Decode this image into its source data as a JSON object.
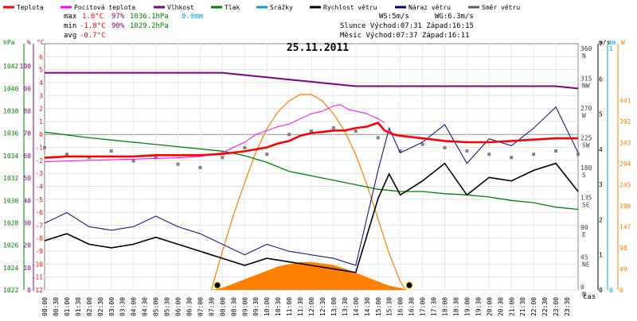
{
  "legend": [
    {
      "label": "Teplota",
      "color": "#ff0000"
    },
    {
      "label": "Pocitová teplota",
      "color": "#ff00ff"
    },
    {
      "label": "Vlhkost",
      "color": "#800080"
    },
    {
      "label": "Tlak",
      "color": "#008000"
    },
    {
      "label": "Srážky",
      "color": "#00a0e0"
    },
    {
      "label": "Rychlost větru",
      "color": "#000000"
    },
    {
      "label": "Náraz větru",
      "color": "#000080"
    },
    {
      "label": "Směr větru",
      "color": "#606060"
    }
  ],
  "stats": {
    "max": {
      "label": "max",
      "temp": "1.0°C",
      "hum": "97%",
      "press": "1036.1hPa",
      "rain": "0.0mm"
    },
    "min": {
      "label": "min",
      "temp": "-1.8°C",
      "hum": "90%",
      "press": "1029.2hPa"
    },
    "avg": {
      "label": "avg",
      "temp": "-0.7°C"
    }
  },
  "wind_info": {
    "ws": "WS:5m/s",
    "wg": "WG:6.3m/s",
    "sun": "Slunce Východ:07:31  Západ:16:15",
    "moon": "Měsíc  Východ:07:37  Západ:16:11"
  },
  "chart_data": {
    "type": "line",
    "title": "25.11.2011",
    "xlabel": "čas",
    "x_ticks": [
      "00:00",
      "00:30",
      "01:00",
      "01:30",
      "02:00",
      "02:30",
      "03:00",
      "03:30",
      "04:00",
      "04:30",
      "05:00",
      "05:30",
      "06:00",
      "06:30",
      "07:00",
      "07:30",
      "08:00",
      "08:30",
      "09:00",
      "09:30",
      "10:00",
      "10:30",
      "11:00",
      "11:30",
      "12:00",
      "12:30",
      "13:00",
      "13:30",
      "14:00",
      "14:30",
      "15:00",
      "15:30",
      "16:00",
      "16:30",
      "17:00",
      "17:30",
      "18:00",
      "18:30",
      "19:00",
      "19:30",
      "20:00",
      "20:30",
      "21:00",
      "21:30",
      "22:00",
      "22:30",
      "23:00",
      "23:30"
    ],
    "x_range_hours": [
      0,
      24
    ],
    "axes": {
      "pressure": {
        "unit": "hPa",
        "range": [
          1022,
          1044
        ],
        "ticks": [
          "1022",
          "1024",
          "1026",
          "1028",
          "1030",
          "1032",
          "1034",
          "1036",
          "1038",
          "1040",
          "1042"
        ],
        "color": "#008000"
      },
      "humidity": {
        "unit": "%",
        "range": [
          0,
          110
        ],
        "ticks": [
          "0",
          "10",
          "20",
          "30",
          "40",
          "50",
          "60",
          "70",
          "80",
          "90",
          "100"
        ],
        "color": "#800080"
      },
      "temperature": {
        "unit": "°C",
        "range": [
          -12,
          7
        ],
        "ticks": [
          "-12",
          "-11",
          "-10",
          "-9",
          "-8",
          "-7",
          "-6",
          "-5",
          "-4",
          "-3",
          "-2",
          "-1",
          "0",
          "1",
          "2",
          "3",
          "4",
          "5",
          "6"
        ],
        "color": "#ff0000"
      },
      "direction": {
        "unit": "°",
        "ticks": [
          {
            "deg": "0",
            "dir": "N"
          },
          {
            "deg": "45",
            "dir": "NE"
          },
          {
            "deg": "90",
            "dir": "E"
          },
          {
            "deg": "135",
            "dir": "SE"
          },
          {
            "deg": "180",
            "dir": "S"
          },
          {
            "deg": "225",
            "dir": "SW"
          },
          {
            "deg": "270",
            "dir": "W"
          },
          {
            "deg": "315",
            "dir": "NW"
          },
          {
            "deg": "360",
            "dir": "N"
          }
        ],
        "color": "#404040"
      },
      "wind": {
        "unit": "m/s",
        "range": [
          0,
          7
        ],
        "ticks": [
          "0",
          "1",
          "2",
          "3",
          "4",
          "5",
          "6",
          "7"
        ],
        "color": "#000000"
      },
      "rain": {
        "unit": "mm",
        "ticks": [
          "0",
          "1"
        ],
        "color": "#00a0e0"
      },
      "solar": {
        "unit": "W",
        "range": [
          0,
          490
        ],
        "ticks": [
          "0",
          "49",
          "98",
          "147",
          "196",
          "245",
          "294",
          "343",
          "392",
          "441"
        ],
        "color": "#ff8000"
      }
    },
    "series": [
      {
        "name": "Teplota",
        "color": "#ff0000",
        "x": [
          0,
          1,
          2,
          3,
          4,
          5,
          6,
          7,
          8,
          9,
          10,
          10.5,
          11,
          11.5,
          12,
          12.5,
          13,
          13.5,
          14,
          14.5,
          15,
          15.3,
          15.7,
          16,
          17,
          18,
          19,
          20,
          21,
          22,
          23,
          24
        ],
        "y": [
          -1.8,
          -1.7,
          -1.7,
          -1.7,
          -1.7,
          -1.6,
          -1.6,
          -1.6,
          -1.5,
          -1.3,
          -1.0,
          -0.7,
          -0.5,
          -0.1,
          0.1,
          0.2,
          0.3,
          0.3,
          0.5,
          0.6,
          0.9,
          0.3,
          0.0,
          -0.1,
          -0.3,
          -0.5,
          -0.6,
          -0.6,
          -0.5,
          -0.4,
          -0.3,
          -0.3
        ]
      },
      {
        "name": "Pocitová teplota",
        "color": "#ff00ff",
        "x": [
          0,
          2,
          4,
          6,
          7,
          8,
          8.5,
          9,
          9.5,
          10,
          10.5,
          11,
          11.5,
          12,
          12.5,
          13,
          13.3,
          13.7,
          14,
          14.5,
          15,
          15.3
        ],
        "y": [
          -2.1,
          -2.0,
          -1.9,
          -1.8,
          -1.7,
          -1.4,
          -1.0,
          -0.6,
          0.0,
          0.3,
          0.6,
          0.8,
          1.2,
          1.6,
          1.8,
          2.2,
          2.3,
          1.9,
          1.8,
          1.6,
          1.2,
          0.9
        ]
      },
      {
        "name": "Vlhkost",
        "color": "#800080",
        "x": [
          0,
          1,
          2,
          3,
          4,
          5,
          6,
          7,
          8,
          9,
          10,
          11,
          12,
          13,
          14,
          15,
          16,
          17,
          18,
          19,
          20,
          21,
          22,
          23,
          24
        ],
        "y": [
          97,
          97,
          97,
          97,
          97,
          97,
          97,
          97,
          97,
          96,
          95,
          94,
          93,
          92,
          91,
          91,
          91,
          91,
          91,
          91,
          91,
          91,
          91,
          91,
          90
        ]
      },
      {
        "name": "Tlak",
        "color": "#008000",
        "x": [
          0,
          2,
          4,
          6,
          8,
          9,
          10,
          11,
          12,
          13,
          14,
          15,
          16,
          17,
          18,
          19,
          20,
          21,
          22,
          23,
          24
        ],
        "y": [
          1036.1,
          1035.6,
          1035.2,
          1034.8,
          1034.4,
          1034.0,
          1033.4,
          1032.6,
          1032.2,
          1031.8,
          1031.4,
          1031.0,
          1030.8,
          1030.8,
          1030.6,
          1030.5,
          1030.3,
          1030.0,
          1029.8,
          1029.4,
          1029.2
        ]
      },
      {
        "name": "Rychlost větru",
        "color": "#000000",
        "x": [
          0,
          1,
          2,
          3,
          4,
          5,
          6,
          7,
          8,
          9,
          10,
          11,
          12,
          13,
          14,
          15,
          15.5,
          16,
          17,
          18,
          19,
          20,
          21,
          22,
          23,
          24
        ],
        "y": [
          1.4,
          1.6,
          1.3,
          1.2,
          1.3,
          1.5,
          1.3,
          1.1,
          0.9,
          0.7,
          0.9,
          0.8,
          0.7,
          0.6,
          0.5,
          2.6,
          3.3,
          2.7,
          3.1,
          3.6,
          2.7,
          3.2,
          3.1,
          3.4,
          3.6,
          2.8
        ]
      },
      {
        "name": "Náraz větru",
        "color": "#000080",
        "x": [
          0,
          1,
          2,
          3,
          4,
          5,
          6,
          7,
          8,
          9,
          10,
          11,
          12,
          13,
          14,
          15,
          15.5,
          16,
          17,
          18,
          19,
          20,
          21,
          22,
          23,
          24
        ],
        "y": [
          1.9,
          2.2,
          1.8,
          1.7,
          1.8,
          2.1,
          1.8,
          1.6,
          1.3,
          1.0,
          1.3,
          1.1,
          1.0,
          0.9,
          0.7,
          3.4,
          4.6,
          3.9,
          4.2,
          4.7,
          3.6,
          4.3,
          4.1,
          4.6,
          5.2,
          3.9
        ]
      },
      {
        "name": "Solar",
        "color": "#ff8000",
        "x": [
          7.5,
          8,
          8.5,
          9,
          9.5,
          10,
          10.5,
          11,
          11.5,
          12,
          12.5,
          13,
          13.5,
          14,
          14.5,
          15,
          15.5,
          16,
          16.3
        ],
        "y": [
          0,
          5,
          15,
          25,
          35,
          45,
          55,
          60,
          65,
          65,
          62,
          58,
          50,
          40,
          30,
          20,
          10,
          5,
          0
        ]
      },
      {
        "name": "Max solar",
        "color": "#ff8000",
        "x": [
          7.5,
          8,
          8.5,
          9,
          9.5,
          10,
          10.5,
          11,
          11.5,
          12,
          12.5,
          13,
          13.5,
          14,
          14.5,
          15,
          15.5,
          16,
          16.25
        ],
        "y": [
          0,
          90,
          175,
          250,
          320,
          375,
          415,
          440,
          455,
          455,
          440,
          410,
          370,
          315,
          245,
          165,
          85,
          20,
          0
        ]
      },
      {
        "name": "Směr větru",
        "color": "#606060",
        "x": [
          0,
          1,
          2,
          3,
          4,
          5,
          6,
          7,
          8,
          9,
          10,
          11,
          12,
          13,
          14,
          15,
          16,
          17,
          18,
          19,
          20,
          21,
          22,
          23,
          24
        ],
        "y": [
          215,
          205,
          200,
          210,
          195,
          200,
          190,
          185,
          200,
          215,
          205,
          235,
          240,
          245,
          240,
          230,
          210,
          220,
          215,
          210,
          205,
          200,
          205,
          210,
          205
        ]
      }
    ]
  }
}
